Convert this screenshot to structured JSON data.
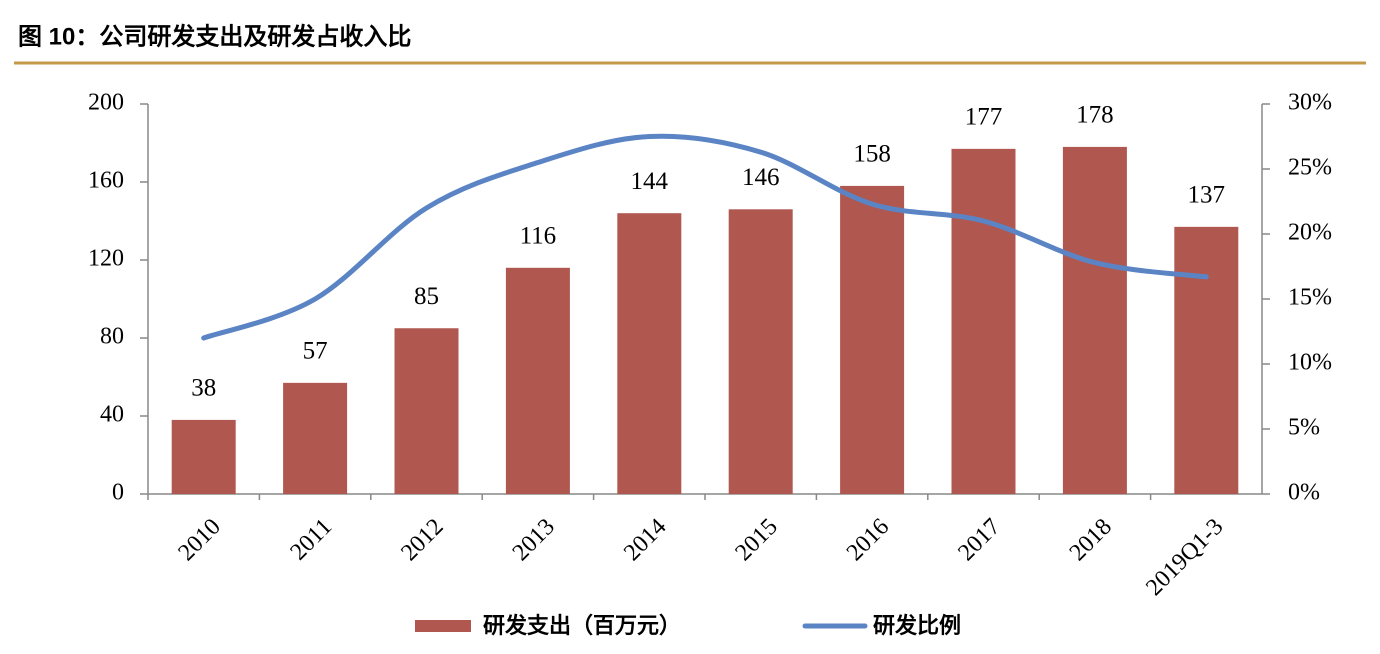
{
  "chart_data": {
    "type": "bar_line",
    "title": "图 10：公司研发支出及研发占收入比",
    "categories": [
      "2010",
      "2011",
      "2012",
      "2013",
      "2014",
      "2015",
      "2016",
      "2017",
      "2018",
      "2019Q1-3"
    ],
    "series": [
      {
        "name": "研发支出（百万元）",
        "type": "bar",
        "color": "#b0574f",
        "values": [
          38,
          57,
          85,
          116,
          144,
          146,
          158,
          177,
          178,
          137
        ]
      },
      {
        "name": "研发比例",
        "type": "line",
        "axis": "y2",
        "color": "#5b84c4",
        "values": [
          12,
          15,
          22,
          25.5,
          27.5,
          26.3,
          22.3,
          21,
          17.8,
          16.7
        ]
      }
    ],
    "ylim": [
      0,
      200
    ],
    "yticks": [
      0,
      40,
      80,
      120,
      160,
      200
    ],
    "y2lim": [
      0,
      30
    ],
    "y2ticks": [
      {
        "value": 0,
        "label": "0%"
      },
      {
        "value": 5,
        "label": "5%"
      },
      {
        "value": 10,
        "label": "10%"
      },
      {
        "value": 15,
        "label": "15%"
      },
      {
        "value": 20,
        "label": "20%"
      },
      {
        "value": 25,
        "label": "25%"
      },
      {
        "value": 30,
        "label": "30%"
      }
    ],
    "grid": false,
    "legend": "bottom"
  }
}
